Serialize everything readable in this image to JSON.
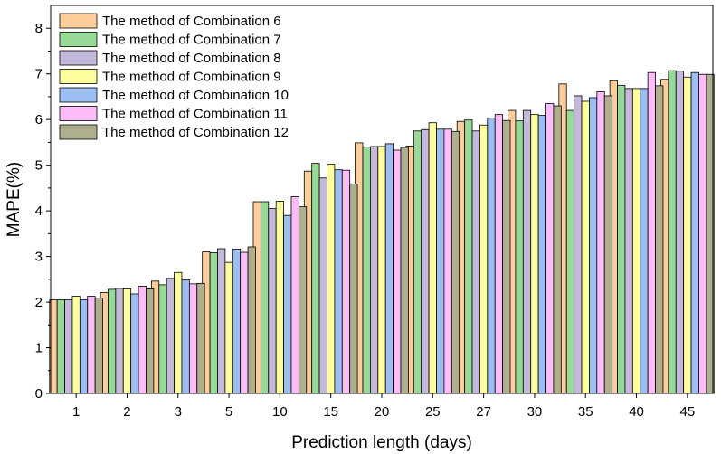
{
  "chart_data": {
    "type": "bar",
    "title": "",
    "xlabel": "Prediction length (days)",
    "ylabel": "MAPE(%)",
    "ylim": [
      0,
      8.5
    ],
    "yticks": [
      0,
      1,
      2,
      3,
      4,
      5,
      6,
      7,
      8
    ],
    "grid": false,
    "legend_position": "top-left",
    "categories": [
      "1",
      "2",
      "3",
      "5",
      "10",
      "15",
      "20",
      "25",
      "27",
      "30",
      "35",
      "40",
      "45"
    ],
    "series": [
      {
        "name": "The method of Combination 6",
        "color": "#FDCE9C",
        "values": [
          2.05,
          2.21,
          2.46,
          3.1,
          4.2,
          4.87,
          5.49,
          5.42,
          5.96,
          6.2,
          6.78,
          6.85,
          6.88
        ]
      },
      {
        "name": "The method of Combination 7",
        "color": "#97D996",
        "values": [
          2.05,
          2.28,
          2.38,
          3.08,
          4.2,
          5.04,
          5.4,
          5.75,
          5.99,
          5.97,
          6.2,
          6.75,
          7.07
        ]
      },
      {
        "name": "The method of Combination 8",
        "color": "#C4B9DB",
        "values": [
          2.05,
          2.3,
          2.52,
          3.17,
          4.05,
          4.72,
          5.41,
          5.78,
          5.75,
          6.2,
          6.52,
          6.68,
          7.06
        ]
      },
      {
        "name": "The method of Combination 9",
        "color": "#FEFE9E",
        "values": [
          2.13,
          2.29,
          2.65,
          2.87,
          4.21,
          5.02,
          5.41,
          5.93,
          5.88,
          6.11,
          6.4,
          6.68,
          6.93
        ]
      },
      {
        "name": "The method of Combination 10",
        "color": "#9DBEF2",
        "values": [
          2.05,
          2.18,
          2.49,
          3.16,
          3.9,
          4.9,
          5.47,
          5.79,
          6.03,
          6.09,
          6.48,
          6.68,
          7.03
        ]
      },
      {
        "name": "The method of Combination 11",
        "color": "#FCBCF8",
        "values": [
          2.13,
          2.35,
          2.4,
          3.09,
          4.31,
          4.89,
          5.33,
          5.79,
          6.11,
          6.35,
          6.61,
          7.03,
          6.99
        ]
      },
      {
        "name": "The method of Combination 12",
        "color": "#AFAF8F",
        "values": [
          2.09,
          2.29,
          2.41,
          3.21,
          4.09,
          4.59,
          5.39,
          5.74,
          5.98,
          6.3,
          6.52,
          6.74,
          6.99
        ]
      }
    ]
  }
}
